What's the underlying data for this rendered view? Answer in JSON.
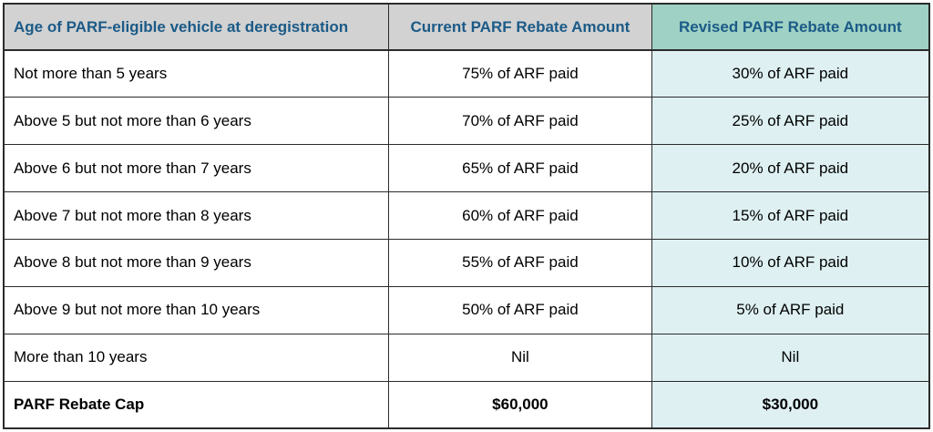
{
  "table": {
    "columns": [
      {
        "key": "age",
        "label": "Age of PARF-eligible vehicle at deregistration"
      },
      {
        "key": "current",
        "label": "Current PARF Rebate Amount"
      },
      {
        "key": "revised",
        "label": "Revised PARF Rebate Amount"
      }
    ],
    "rows": [
      {
        "age": "Not more than 5 years",
        "current": "75% of ARF paid",
        "revised": "30% of ARF paid",
        "bold": false
      },
      {
        "age": "Above 5 but not more than 6 years",
        "current": "70% of ARF paid",
        "revised": "25% of ARF paid",
        "bold": false
      },
      {
        "age": "Above 6 but not more than 7 years",
        "current": "65% of ARF paid",
        "revised": "20% of ARF paid",
        "bold": false
      },
      {
        "age": "Above 7 but not more than 8 years",
        "current": "60% of ARF paid",
        "revised": "15% of ARF paid",
        "bold": false
      },
      {
        "age": "Above 8 but not more than 9 years",
        "current": "55% of ARF paid",
        "revised": "10% of ARF paid",
        "bold": false
      },
      {
        "age": "Above 9 but not more than 10 years",
        "current": "50% of ARF paid",
        "revised": "5% of ARF paid",
        "bold": false
      },
      {
        "age": "More than 10 years",
        "current": "Nil",
        "revised": "Nil",
        "bold": false
      },
      {
        "age": "PARF Rebate Cap",
        "current": "$60,000",
        "revised": "$30,000",
        "bold": true
      }
    ],
    "colors": {
      "header_bg": "#d2d2d2",
      "header_revised_bg": "#9fd2c4",
      "header_text": "#1b5a87",
      "revised_cell_bg": "#def0f2",
      "body_text": "#000000",
      "border": "#2b2b2b"
    }
  }
}
